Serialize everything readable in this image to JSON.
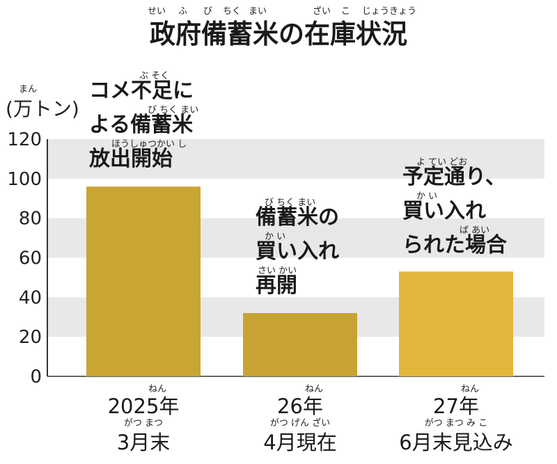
{
  "chart_data": {
    "type": "bar",
    "title": "政府備蓄米の在庫状況",
    "title_ruby": [
      "せい",
      "ふ",
      "び",
      "ちく",
      "まい",
      "ざい",
      "こ",
      "じょうきょう"
    ],
    "unit_label": "(万トン)",
    "unit_ruby": "まん",
    "ylim": [
      0,
      120
    ],
    "yticks": [
      0,
      20,
      40,
      60,
      80,
      100,
      120
    ],
    "grid_bands": true,
    "categories": [
      {
        "year": "2025年",
        "date": "3月末",
        "ruby_year": "ねん",
        "ruby_date": "がつ まつ"
      },
      {
        "year": "26年",
        "date": "4月現在",
        "ruby_year": "ねん",
        "ruby_date": "がつ げん ざい"
      },
      {
        "year": "27年",
        "date": "6月末見込み",
        "ruby_year": "ねん",
        "ruby_date": "がつ まつ み こ"
      }
    ],
    "values": [
      96,
      32,
      53
    ],
    "colors": [
      "#c9a634",
      "#c6a334",
      "#e3b63c"
    ],
    "annotations": [
      {
        "lines": [
          "コメ不足に",
          "よる備蓄米",
          "放出開始"
        ],
        "ruby": [
          "ぶ そく",
          "び ちく まい",
          "ほうしゅつかい し"
        ]
      },
      {
        "lines": [
          "備蓄米の",
          "買い入れ",
          "再開"
        ],
        "ruby": [
          "び ちく まい",
          "か い",
          "さい かい"
        ]
      },
      {
        "lines": [
          "予定通り、",
          "買い入れ",
          "られた場合"
        ],
        "ruby": [
          "よ てい どお",
          "か い",
          "ば あい"
        ]
      }
    ]
  }
}
